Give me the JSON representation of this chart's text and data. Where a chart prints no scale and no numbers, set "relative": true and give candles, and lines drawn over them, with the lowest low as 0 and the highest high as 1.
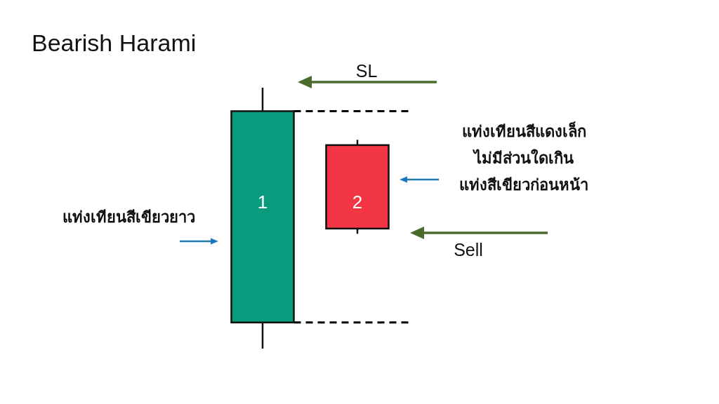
{
  "chart_data": {
    "type": "candlestick",
    "title": "Bearish Harami",
    "relative": true,
    "categories": [
      "1",
      "2"
    ],
    "ohlc": [
      [
        0.1,
        1,
        0,
        0.91
      ],
      [
        0.78,
        0.8,
        0.44,
        0.46
      ]
    ],
    "colors": [
      "#0a9a7e",
      "#f23645"
    ],
    "ref_lines": [
      {
        "axis": "y",
        "value": 0.91,
        "line_style": "dashed",
        "color": "#000000"
      },
      {
        "axis": "y",
        "value": 0.1,
        "line_style": "dashed",
        "color": "#000000"
      }
    ],
    "annotations": [
      "SL",
      "Sell",
      "แท่งเทียนสีเขียวยาว",
      "แท่งเทียนสีแดงเล็ก\nไม่มีส่วนใดเกิน\nแท่งสีเขียวก่อนหน้า"
    ]
  }
}
